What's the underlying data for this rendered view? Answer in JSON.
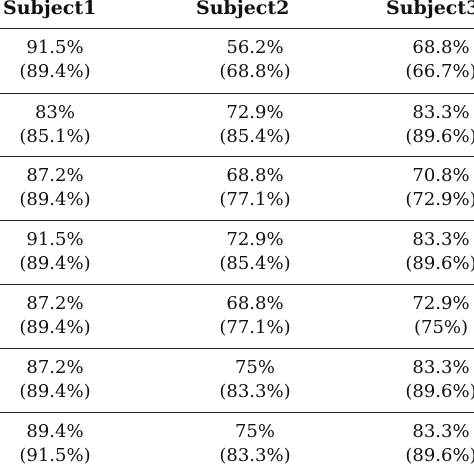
{
  "table": {
    "headers": [
      "Subject1",
      "Subject2",
      "Subject3"
    ],
    "rows": [
      [
        {
          "value": "91.5%",
          "paren": "(89.4%)"
        },
        {
          "value": "56.2%",
          "paren": "(68.8%)"
        },
        {
          "value": "68.8%",
          "paren": "(66.7%)"
        }
      ],
      [
        {
          "value": "83%",
          "paren": "(85.1%)"
        },
        {
          "value": "72.9%",
          "paren": "(85.4%)"
        },
        {
          "value": "83.3%",
          "paren": "(89.6%)"
        }
      ],
      [
        {
          "value": "87.2%",
          "paren": "(89.4%)"
        },
        {
          "value": "68.8%",
          "paren": "(77.1%)"
        },
        {
          "value": "70.8%",
          "paren": "(72.9%)"
        }
      ],
      [
        {
          "value": "91.5%",
          "paren": "(89.4%)"
        },
        {
          "value": "72.9%",
          "paren": "(85.4%)"
        },
        {
          "value": "83.3%",
          "paren": "(89.6%)"
        }
      ],
      [
        {
          "value": "87.2%",
          "paren": "(89.4%)"
        },
        {
          "value": "68.8%",
          "paren": "(77.1%)"
        },
        {
          "value": "72.9%",
          "paren": "(75%)"
        }
      ],
      [
        {
          "value": "87.2%",
          "paren": "(89.4%)"
        },
        {
          "value": "75%",
          "paren": "(83.3%)"
        },
        {
          "value": "83.3%",
          "paren": "(89.6%)"
        }
      ],
      [
        {
          "value": "89.4%",
          "paren": "(91.5%)"
        },
        {
          "value": "75%",
          "paren": "(83.3%)"
        },
        {
          "value": "83.3%",
          "paren": "(89.6%)"
        }
      ]
    ]
  }
}
